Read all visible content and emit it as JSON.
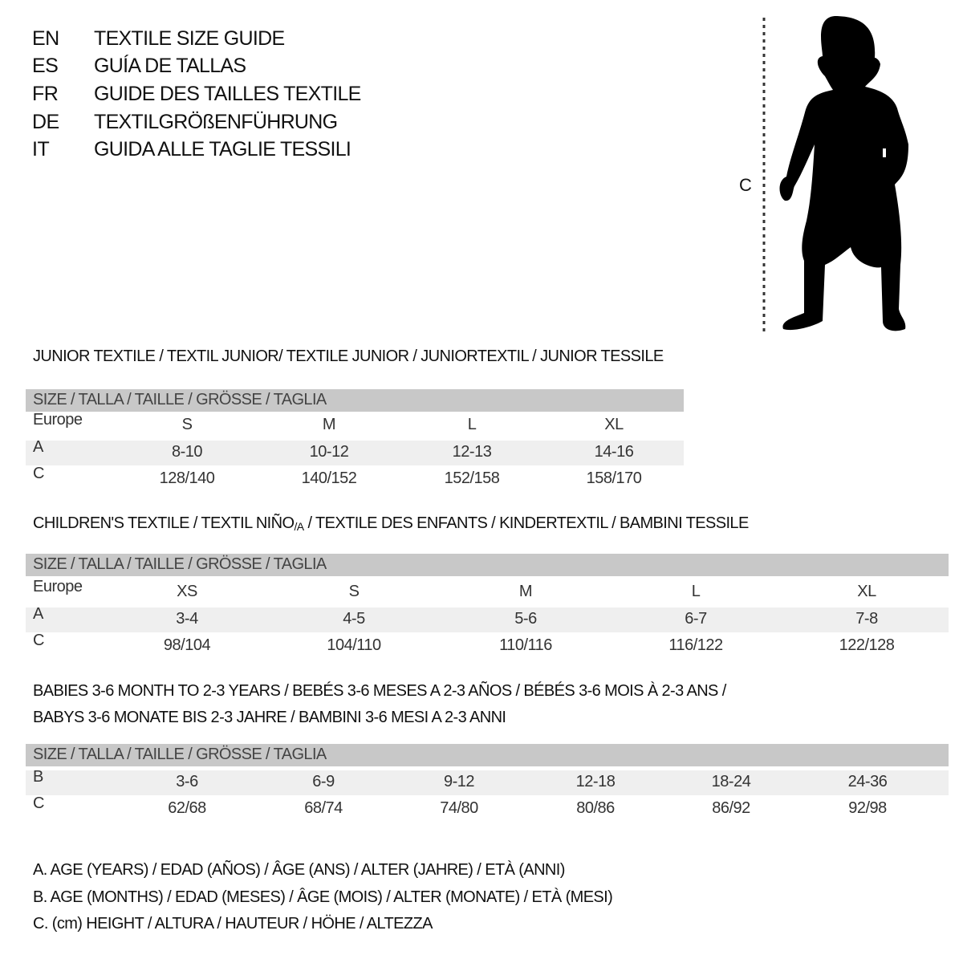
{
  "header": {
    "rows": [
      {
        "lang": "EN",
        "title": "TEXTILE SIZE GUIDE"
      },
      {
        "lang": "ES",
        "title": "GUÍA DE TALLAS"
      },
      {
        "lang": "FR",
        "title": "GUIDE DES TAILLES TEXTILE"
      },
      {
        "lang": "DE",
        "title": "TEXTILGRÖßENFÜHRUNG"
      },
      {
        "lang": "IT",
        "title": "GUIDA ALLE TAGLIE TESSILI"
      }
    ]
  },
  "figure": {
    "measure_label": "C"
  },
  "junior": {
    "title": "JUNIOR TEXTILE / TEXTIL JUNIOR/ TEXTILE JUNIOR / JUNIORTEXTIL / JUNIOR TESSILE",
    "size_header": "SIZE / TALLA / TAILLE / GRÖSSE / TAGLIA",
    "rows": [
      {
        "label": "Europe",
        "values": [
          "S",
          "M",
          "L",
          "XL"
        ]
      },
      {
        "label": "A",
        "values": [
          "8-10",
          "10-12",
          "12-13",
          "14-16"
        ]
      },
      {
        "label": "C",
        "values": [
          "128/140",
          "140/152",
          "152/158",
          "158/170"
        ]
      }
    ]
  },
  "children": {
    "title_part1": "CHILDREN'S TEXTILE / TEXTIL NIÑO",
    "title_sub": "/A",
    "title_part2": " / TEXTILE DES ENFANTS / KINDERTEXTIL / BAMBINI TESSILE",
    "size_header": "SIZE / TALLA / TAILLE / GRÖSSE / TAGLIA",
    "rows": [
      {
        "label": "Europe",
        "values": [
          "XS",
          "S",
          "M",
          "L",
          "XL"
        ]
      },
      {
        "label": "A",
        "values": [
          "3-4",
          "4-5",
          "5-6",
          "6-7",
          "7-8"
        ]
      },
      {
        "label": "C",
        "values": [
          "98/104",
          "104/110",
          "110/116",
          "116/122",
          "122/128"
        ]
      }
    ]
  },
  "babies": {
    "title_line1": "BABIES 3-6 MONTH TO 2-3 YEARS / BEBÉS 3-6 MESES A 2-3 AÑOS / BÉBÉS 3-6 MOIS À 2-3 ANS /",
    "title_line2": "BABYS 3-6 MONATE BIS 2-3 JAHRE / BAMBINI 3-6 MESI A 2-3 ANNI",
    "size_header": "SIZE / TALLA / TAILLE / GRÖSSE / TAGLIA",
    "rows": [
      {
        "label": "B",
        "values": [
          "3-6",
          "6-9",
          "9-12",
          "12-18",
          "18-24",
          "24-36"
        ]
      },
      {
        "label": "C",
        "values": [
          "62/68",
          "68/74",
          "74/80",
          "80/86",
          "86/92",
          "92/98"
        ]
      }
    ]
  },
  "legend": [
    "A. AGE (YEARS) / EDAD (AÑOS) / ÂGE (ANS) / ALTER (JAHRE) / ETÀ (ANNI)",
    "B. AGE (MONTHS) / EDAD (MESES) / ÂGE (MOIS) / ALTER (MONATE) / ETÀ (MESI)",
    "C. (cm) HEIGHT / ALTURA / HAUTEUR / HÖHE / ALTEZZA"
  ]
}
